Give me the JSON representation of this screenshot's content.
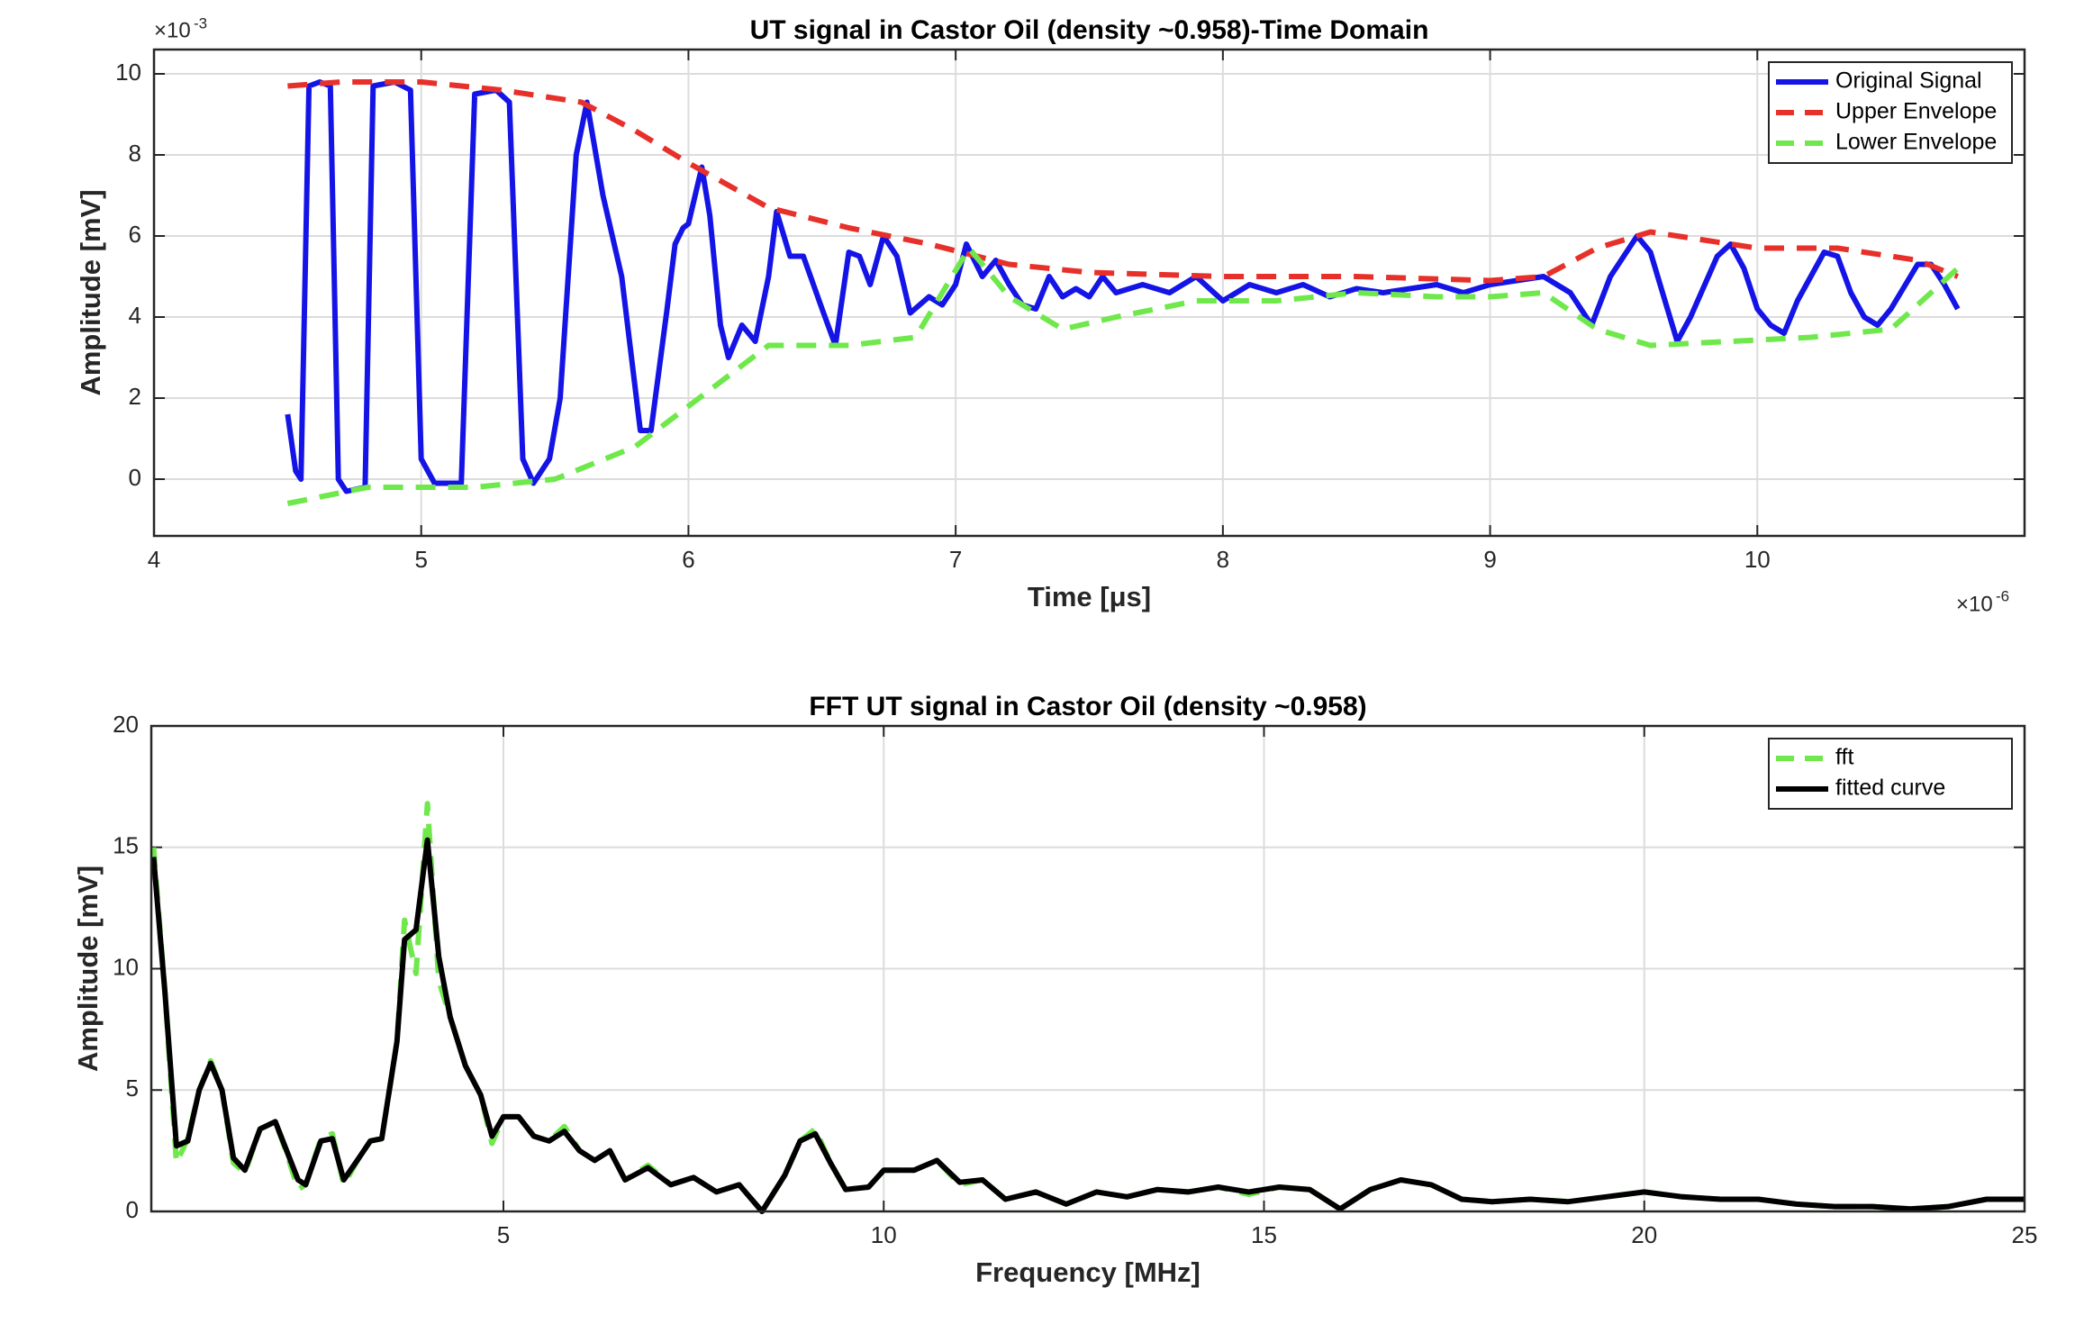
{
  "chart_data": [
    {
      "type": "line",
      "title": "UT signal in Castor Oil (density ~0.958)-Time Domain",
      "xlabel": "Time [μs]",
      "ylabel": "Amplitude [mV]",
      "x_multiplier": {
        "base": "×10",
        "exponent": "-6"
      },
      "y_multiplier": {
        "base": "×10",
        "exponent": "-3"
      },
      "xlim": [
        4,
        11
      ],
      "ylim": [
        -1.4,
        10.6
      ],
      "xticks": [
        4,
        5,
        6,
        7,
        8,
        9,
        10
      ],
      "yticks": [
        0,
        2,
        4,
        6,
        8,
        10
      ],
      "grid": true,
      "legend": "upper right",
      "series": [
        {
          "name": "Original Signal",
          "color": "#1414e6",
          "style": "solid",
          "x": [
            4.5,
            4.53,
            4.55,
            4.58,
            4.62,
            4.66,
            4.69,
            4.72,
            4.79,
            4.82,
            4.9,
            4.96,
            5.0,
            5.05,
            5.15,
            5.2,
            5.28,
            5.33,
            5.38,
            5.42,
            5.48,
            5.52,
            5.58,
            5.62,
            5.68,
            5.75,
            5.82,
            5.86,
            5.92,
            5.95,
            5.98,
            6.0,
            6.05,
            6.08,
            6.12,
            6.15,
            6.2,
            6.25,
            6.3,
            6.33,
            6.38,
            6.43,
            6.5,
            6.55,
            6.6,
            6.64,
            6.68,
            6.73,
            6.78,
            6.83,
            6.9,
            6.95,
            7.0,
            7.04,
            7.1,
            7.15,
            7.2,
            7.25,
            7.3,
            7.35,
            7.4,
            7.45,
            7.5,
            7.55,
            7.6,
            7.7,
            7.8,
            7.9,
            8.0,
            8.1,
            8.2,
            8.3,
            8.4,
            8.5,
            8.6,
            8.7,
            8.8,
            8.9,
            9.0,
            9.1,
            9.2,
            9.3,
            9.38,
            9.45,
            9.55,
            9.6,
            9.65,
            9.7,
            9.75,
            9.85,
            9.9,
            9.95,
            10.0,
            10.05,
            10.1,
            10.15,
            10.25,
            10.3,
            10.35,
            10.4,
            10.45,
            10.5,
            10.6,
            10.65,
            10.7,
            10.75
          ],
          "values": [
            1.6,
            0.2,
            0,
            9.7,
            9.8,
            9.7,
            0,
            -0.3,
            -0.2,
            9.7,
            9.8,
            9.6,
            0.5,
            -0.1,
            -0.1,
            9.5,
            9.6,
            9.3,
            0.5,
            -0.1,
            0.5,
            2,
            8,
            9.3,
            7,
            5,
            1.2,
            1.2,
            4.2,
            5.8,
            6.2,
            6.3,
            7.7,
            6.5,
            3.8,
            3,
            3.8,
            3.4,
            5,
            6.6,
            5.5,
            5.5,
            4.2,
            3.3,
            5.6,
            5.5,
            4.8,
            6,
            5.5,
            4.1,
            4.5,
            4.3,
            4.8,
            5.8,
            5,
            5.4,
            4.8,
            4.3,
            4.2,
            5,
            4.5,
            4.7,
            4.5,
            5,
            4.6,
            4.8,
            4.6,
            5,
            4.4,
            4.8,
            4.6,
            4.8,
            4.5,
            4.7,
            4.6,
            4.7,
            4.8,
            4.6,
            4.8,
            4.9,
            5,
            4.6,
            3.8,
            5,
            6,
            5.6,
            4.5,
            3.4,
            4,
            5.5,
            5.8,
            5.2,
            4.2,
            3.8,
            3.6,
            4.4,
            5.6,
            5.5,
            4.6,
            4,
            3.8,
            4.2,
            5.3,
            5.3,
            4.8,
            4.2
          ]
        },
        {
          "name": "Upper Envelope",
          "color": "#e8302a",
          "style": "dashed",
          "x": [
            4.5,
            4.7,
            5.0,
            5.3,
            5.6,
            5.8,
            6.0,
            6.3,
            6.6,
            6.9,
            7.2,
            7.5,
            8.0,
            8.5,
            9.0,
            9.2,
            9.4,
            9.6,
            9.8,
            10.0,
            10.3,
            10.6,
            10.75
          ],
          "values": [
            9.7,
            9.8,
            9.8,
            9.6,
            9.3,
            8.6,
            7.8,
            6.7,
            6.2,
            5.8,
            5.3,
            5.1,
            5.0,
            5.0,
            4.9,
            5.0,
            5.7,
            6.1,
            5.9,
            5.7,
            5.7,
            5.4,
            5.0
          ]
        },
        {
          "name": "Lower Envelope",
          "color": "#6ee84a",
          "style": "dashed",
          "x": [
            4.5,
            4.8,
            5.2,
            5.5,
            5.8,
            6.0,
            6.3,
            6.6,
            6.85,
            7.05,
            7.2,
            7.4,
            7.6,
            7.9,
            8.2,
            8.5,
            8.8,
            9.0,
            9.2,
            9.4,
            9.6,
            9.9,
            10.2,
            10.5,
            10.75
          ],
          "values": [
            -0.6,
            -0.2,
            -0.2,
            0,
            0.8,
            1.8,
            3.3,
            3.3,
            3.5,
            5.7,
            4.5,
            3.7,
            4.0,
            4.4,
            4.4,
            4.6,
            4.5,
            4.5,
            4.6,
            3.7,
            3.3,
            3.4,
            3.5,
            3.7,
            5.2
          ]
        }
      ]
    },
    {
      "type": "line",
      "title": "FFT UT signal in Castor Oil (density ~0.958)",
      "xlabel": "Frequency [MHz]",
      "ylabel": "Amplitude [mV]",
      "xlim": [
        0.37,
        25
      ],
      "ylim": [
        0,
        20
      ],
      "xticks": [
        5,
        10,
        15,
        20,
        25
      ],
      "yticks": [
        0,
        5,
        10,
        15,
        20
      ],
      "grid": true,
      "legend": "upper right",
      "series": [
        {
          "name": "fft",
          "color": "#6ee84a",
          "style": "dashed",
          "x": [
            0.4,
            0.55,
            0.7,
            0.85,
            1.0,
            1.15,
            1.3,
            1.45,
            1.6,
            1.8,
            2.0,
            2.15,
            2.3,
            2.4,
            2.6,
            2.75,
            2.9,
            3.1,
            3.25,
            3.4,
            3.6,
            3.7,
            3.85,
            4.0,
            4.15,
            4.3,
            4.5,
            4.7,
            4.85,
            5.0,
            5.2,
            5.4,
            5.6,
            5.8,
            6.0,
            6.2,
            6.4,
            6.6,
            6.9,
            7.2,
            7.5,
            7.8,
            8.1,
            8.4,
            8.7,
            8.9,
            9.1,
            9.3,
            9.5,
            9.8,
            10.0,
            10.4,
            10.7,
            11.0,
            11.3,
            11.6,
            12.0,
            12.4,
            12.8,
            13.2,
            13.6,
            14.0,
            14.4,
            14.8,
            15.2,
            15.6,
            16.0,
            16.4,
            16.8,
            17.2,
            17.6,
            18.0,
            18.5,
            19.0,
            19.5,
            20.0,
            20.5,
            21.0,
            21.5,
            22.0,
            22.5,
            23.0,
            23.5,
            24.0,
            24.5,
            25.0
          ],
          "values": [
            15,
            9,
            2,
            3,
            5,
            6.2,
            5,
            2,
            1.6,
            3.4,
            3.7,
            2.4,
            0.9,
            1.1,
            3,
            3.2,
            1.1,
            2.2,
            2.9,
            3,
            7,
            12,
            9.8,
            16.8,
            9.5,
            8,
            6,
            4.8,
            2.8,
            3.9,
            3.9,
            3.1,
            2.9,
            3.5,
            2.5,
            2.1,
            2.5,
            1.3,
            1.9,
            1.1,
            1.4,
            0.8,
            1.1,
            0,
            1.5,
            2.9,
            3.4,
            2,
            0.9,
            1.0,
            1.7,
            1.7,
            2.1,
            1.1,
            1.3,
            0.5,
            0.8,
            0.3,
            0.8,
            0.6,
            0.9,
            0.8,
            1.0,
            0.7,
            1.0,
            0.9,
            0.1,
            0.9,
            1.3,
            1.1,
            0.5,
            0.4,
            0.5,
            0.4,
            0.6,
            0.8,
            0.6,
            0.5,
            0.5,
            0.3,
            0.2,
            0.2,
            0.1,
            0.2,
            0.5,
            0.5
          ]
        },
        {
          "name": "fitted curve",
          "color": "#000000",
          "style": "solid",
          "x": [
            0.4,
            0.55,
            0.7,
            0.85,
            1.0,
            1.15,
            1.3,
            1.45,
            1.6,
            1.8,
            2.0,
            2.15,
            2.3,
            2.4,
            2.6,
            2.75,
            2.9,
            3.1,
            3.25,
            3.4,
            3.6,
            3.7,
            3.85,
            4.0,
            4.15,
            4.3,
            4.5,
            4.7,
            4.85,
            5.0,
            5.2,
            5.4,
            5.6,
            5.8,
            6.0,
            6.2,
            6.4,
            6.6,
            6.9,
            7.2,
            7.5,
            7.8,
            8.1,
            8.4,
            8.7,
            8.9,
            9.1,
            9.3,
            9.5,
            9.8,
            10.0,
            10.4,
            10.7,
            11.0,
            11.3,
            11.6,
            12.0,
            12.4,
            12.8,
            13.2,
            13.6,
            14.0,
            14.4,
            14.8,
            15.2,
            15.6,
            16.0,
            16.4,
            16.8,
            17.2,
            17.6,
            18.0,
            18.5,
            19.0,
            19.5,
            20.0,
            20.5,
            21.0,
            21.5,
            22.0,
            22.5,
            23.0,
            23.5,
            24.0,
            24.5,
            25.0
          ],
          "values": [
            14.6,
            9,
            2.7,
            2.9,
            5,
            6.1,
            5,
            2.2,
            1.7,
            3.4,
            3.7,
            2.5,
            1.3,
            1.1,
            2.9,
            3,
            1.3,
            2.2,
            2.9,
            3,
            7,
            11.2,
            11.6,
            15.3,
            10.5,
            8,
            6,
            4.8,
            3.1,
            3.9,
            3.9,
            3.1,
            2.9,
            3.3,
            2.5,
            2.1,
            2.5,
            1.3,
            1.8,
            1.1,
            1.4,
            0.8,
            1.1,
            0,
            1.5,
            2.9,
            3.2,
            2,
            0.9,
            1.0,
            1.7,
            1.7,
            2.1,
            1.2,
            1.3,
            0.5,
            0.8,
            0.3,
            0.8,
            0.6,
            0.9,
            0.8,
            1.0,
            0.8,
            1.0,
            0.9,
            0.1,
            0.9,
            1.3,
            1.1,
            0.5,
            0.4,
            0.5,
            0.4,
            0.6,
            0.8,
            0.6,
            0.5,
            0.5,
            0.3,
            0.2,
            0.2,
            0.1,
            0.2,
            0.5,
            0.5
          ]
        }
      ]
    }
  ]
}
